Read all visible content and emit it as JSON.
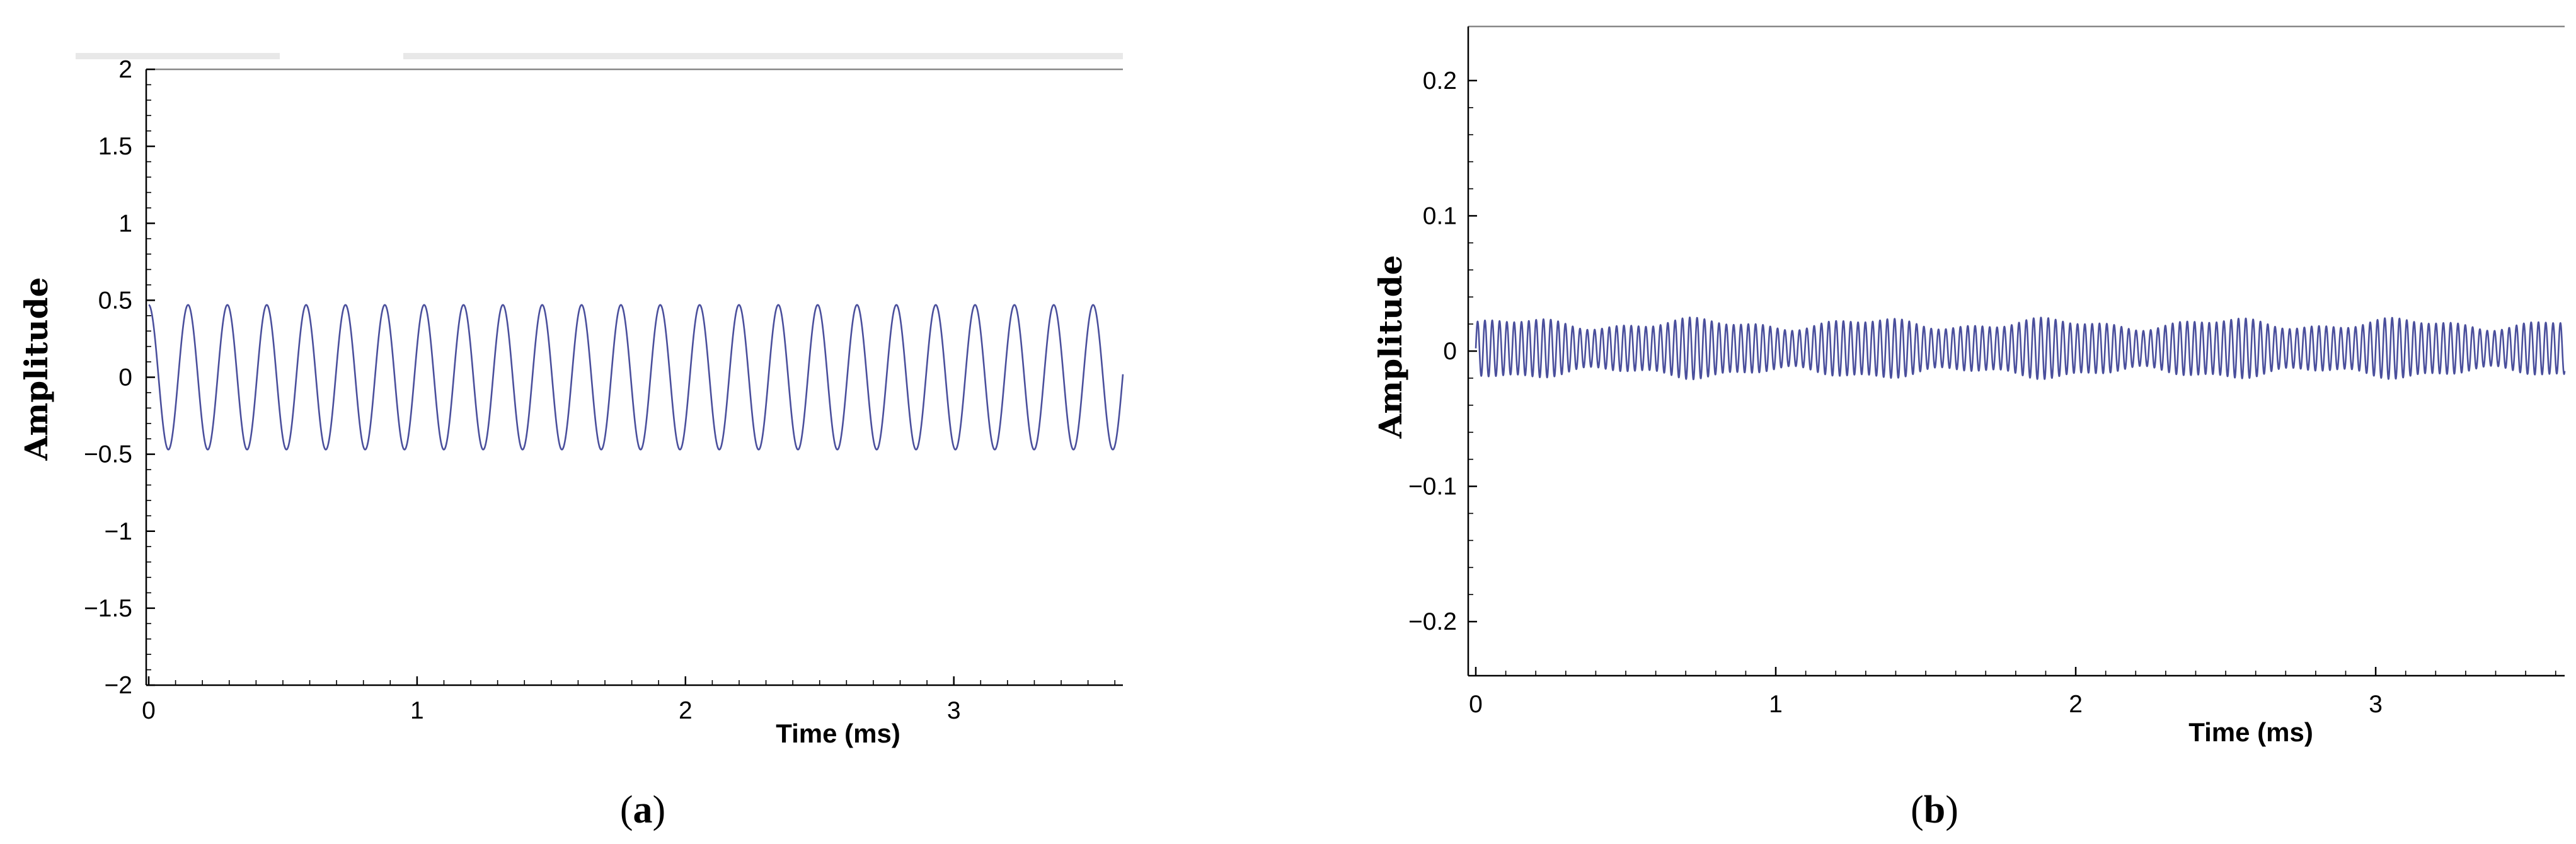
{
  "colors": {
    "signal": "#4a4f9c",
    "axis": "#000000",
    "background": "#ffffff"
  },
  "chart_data": [
    {
      "type": "line",
      "panel_label": "(a)",
      "xlabel": "Time (ms)",
      "ylabel": "Amplitude",
      "xlim": [
        0,
        3.63
      ],
      "ylim": [
        -2,
        2
      ],
      "xticks": [
        0,
        1,
        2,
        3
      ],
      "xtick_labels": [
        "0",
        "1",
        "2",
        "3"
      ],
      "yticks": [
        -2,
        -1.5,
        -1,
        -0.5,
        0,
        0.5,
        1,
        1.5,
        2
      ],
      "ytick_labels": [
        "−2",
        "−1.5",
        "−1",
        "−0.5",
        "0",
        "0.5",
        "1",
        "1.5",
        "2"
      ],
      "grid": false,
      "series": [
        {
          "amplitude": 0.47,
          "frequency_khz": 6.82,
          "phase_deg": 90,
          "x_start": 0,
          "x_end": 3.63
        }
      ]
    },
    {
      "type": "line",
      "panel_label": "(b)",
      "xlabel": "Time (ms)",
      "ylabel": "Amplitude",
      "xlim": [
        0,
        3.63
      ],
      "ylim": [
        -0.24,
        0.24
      ],
      "xticks": [
        0,
        1,
        2,
        3
      ],
      "xtick_labels": [
        "0",
        "1",
        "2",
        "3"
      ],
      "yticks": [
        -0.2,
        -0.1,
        0,
        0.1,
        0.2
      ],
      "ytick_labels": [
        "−0.2",
        "−0.1",
        "0",
        "0.1",
        "0.2"
      ],
      "grid": false,
      "series": [
        {
          "amplitude": 0.018,
          "offset": 0.002,
          "frequency_khz": 41,
          "x_start": 0,
          "x_end": 3.63
        }
      ]
    }
  ]
}
